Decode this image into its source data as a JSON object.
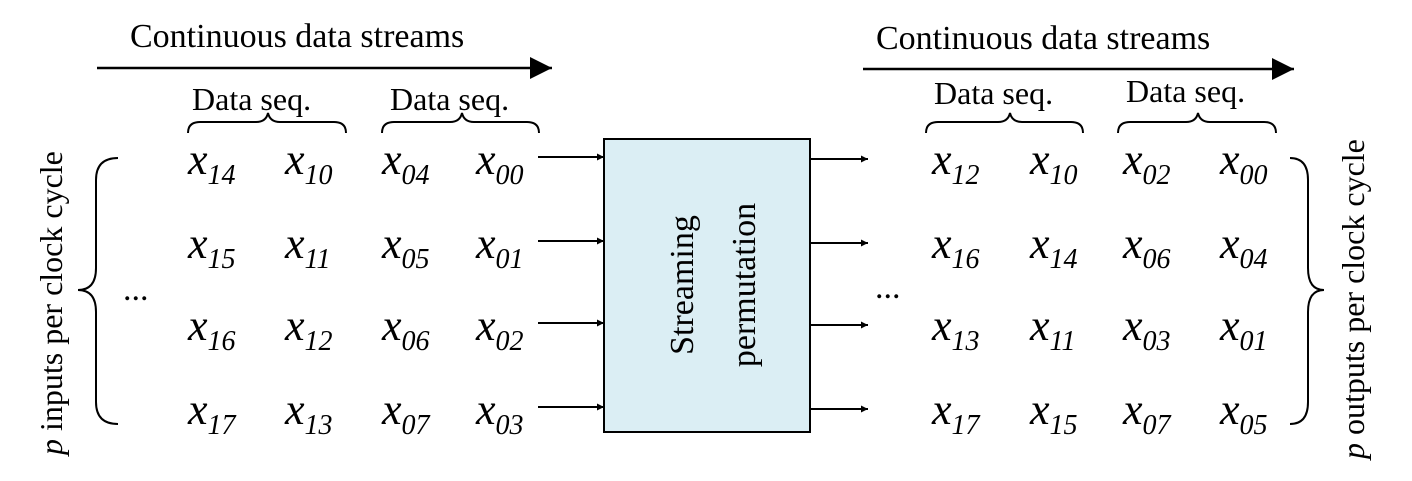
{
  "colors": {
    "box_fill": "#dbeef4",
    "line": "#000000"
  },
  "left": {
    "stream_label": "Continuous data streams",
    "seq_labels": [
      "Data seq.",
      "Data seq."
    ],
    "side_label_var": "p",
    "side_label_text": " inputs per clock cycle",
    "ellipsis": "...",
    "grid": [
      [
        "14",
        "10",
        "04",
        "00"
      ],
      [
        "15",
        "11",
        "05",
        "01"
      ],
      [
        "16",
        "12",
        "06",
        "02"
      ],
      [
        "17",
        "13",
        "07",
        "03"
      ]
    ]
  },
  "block": {
    "line1": "Streaming",
    "line2": "permutation"
  },
  "right": {
    "stream_label": "Continuous data streams",
    "seq_labels": [
      "Data seq.",
      "Data seq."
    ],
    "side_label_var": "p",
    "side_label_text": " outputs per clock cycle",
    "ellipsis": "...",
    "grid": [
      [
        "12",
        "10",
        "02",
        "00"
      ],
      [
        "16",
        "14",
        "06",
        "04"
      ],
      [
        "13",
        "11",
        "03",
        "01"
      ],
      [
        "17",
        "15",
        "07",
        "05"
      ]
    ]
  },
  "symbol": "x"
}
